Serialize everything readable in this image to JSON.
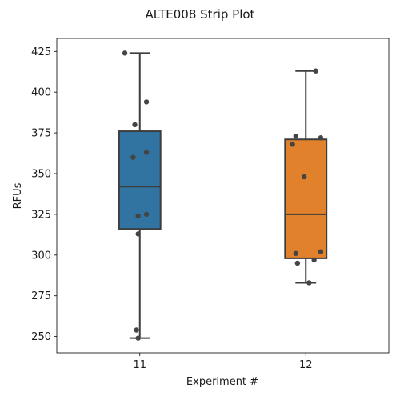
{
  "chart_data": {
    "type": "box",
    "title": "ALTE008 Strip Plot",
    "xlabel": "Experiment #",
    "ylabel": "RFUs",
    "ylim": [
      240,
      433
    ],
    "yticks": [
      250,
      275,
      300,
      325,
      350,
      375,
      400,
      425
    ],
    "categories": [
      "11",
      "12"
    ],
    "series": [
      {
        "category": "11",
        "color": "#3274a1",
        "whisker_low": 249,
        "q1": 316,
        "median": 342,
        "q3": 376,
        "whisker_high": 424,
        "points": [
          {
            "x": -0.09,
            "y": 424
          },
          {
            "x": 0.04,
            "y": 394
          },
          {
            "x": -0.03,
            "y": 380
          },
          {
            "x": 0.04,
            "y": 363
          },
          {
            "x": -0.04,
            "y": 360
          },
          {
            "x": 0.04,
            "y": 325
          },
          {
            "x": -0.01,
            "y": 324
          },
          {
            "x": -0.01,
            "y": 313
          },
          {
            "x": -0.02,
            "y": 254
          },
          {
            "x": -0.01,
            "y": 249
          }
        ]
      },
      {
        "category": "12",
        "color": "#e1812c",
        "whisker_low": 283,
        "q1": 298,
        "median": 325,
        "q3": 371,
        "whisker_high": 413,
        "points": [
          {
            "x": 0.06,
            "y": 413
          },
          {
            "x": -0.06,
            "y": 373
          },
          {
            "x": 0.09,
            "y": 372
          },
          {
            "x": -0.08,
            "y": 368
          },
          {
            "x": -0.01,
            "y": 348
          },
          {
            "x": 0.09,
            "y": 302
          },
          {
            "x": -0.06,
            "y": 301
          },
          {
            "x": 0.05,
            "y": 297
          },
          {
            "x": -0.05,
            "y": 295
          },
          {
            "x": 0.02,
            "y": 283
          }
        ]
      }
    ]
  }
}
